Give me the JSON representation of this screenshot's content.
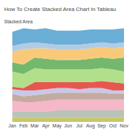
{
  "chart_data": {
    "type": "area",
    "title": "How To Create Stacked Area Chart In Tableau",
    "subtitle": "Stacked Area",
    "categories": [
      "Jan",
      "Feb",
      "Mar",
      "Apr",
      "May",
      "Jun",
      "Jul",
      "Aug",
      "Sep",
      "Oct",
      "Nov"
    ],
    "series": [
      {
        "color": "#c8c86a",
        "values": [
          4,
          4,
          4,
          4,
          4,
          4,
          4,
          4,
          4,
          4,
          4
        ]
      },
      {
        "color": "#b8c4b8",
        "values": [
          5,
          5,
          5,
          5,
          6,
          6,
          6,
          6,
          6,
          6,
          6
        ]
      },
      {
        "color": "#f4b8c8",
        "values": [
          9,
          8,
          8,
          9,
          9,
          9,
          9,
          9,
          9,
          9,
          9
        ]
      },
      {
        "color": "#c4aba0",
        "values": [
          6,
          5,
          6,
          6,
          6,
          6,
          6,
          6,
          6,
          5,
          5
        ]
      },
      {
        "color": "#c8c8e8",
        "values": [
          4,
          5,
          4,
          4,
          4,
          4,
          3,
          4,
          4,
          3,
          3
        ]
      },
      {
        "color": "#e8574f",
        "values": [
          2,
          2,
          7,
          6,
          5,
          5,
          6,
          5,
          6,
          7,
          6
        ]
      },
      {
        "color": "#b2df8a",
        "values": [
          13,
          12,
          12,
          11,
          11,
          11,
          11,
          11,
          11,
          11,
          10
        ]
      },
      {
        "color": "#74b86e",
        "values": [
          8,
          8,
          9,
          9,
          8,
          8,
          8,
          9,
          9,
          9,
          12
        ]
      },
      {
        "color": "#f9c97a",
        "values": [
          9,
          13,
          8,
          9,
          9,
          9,
          9,
          9,
          9,
          9,
          9
        ]
      },
      {
        "color": "#b0cce4",
        "values": [
          5,
          5,
          5,
          4,
          4,
          4,
          4,
          4,
          4,
          4,
          4
        ]
      },
      {
        "color": "#6baed6",
        "values": [
          12,
          13,
          11,
          13,
          12,
          12,
          12,
          12,
          11,
          12,
          12
        ]
      }
    ],
    "stacked": true,
    "ylim": [
      0,
      80.8
    ],
    "grid": false,
    "tick_labels": "x"
  }
}
